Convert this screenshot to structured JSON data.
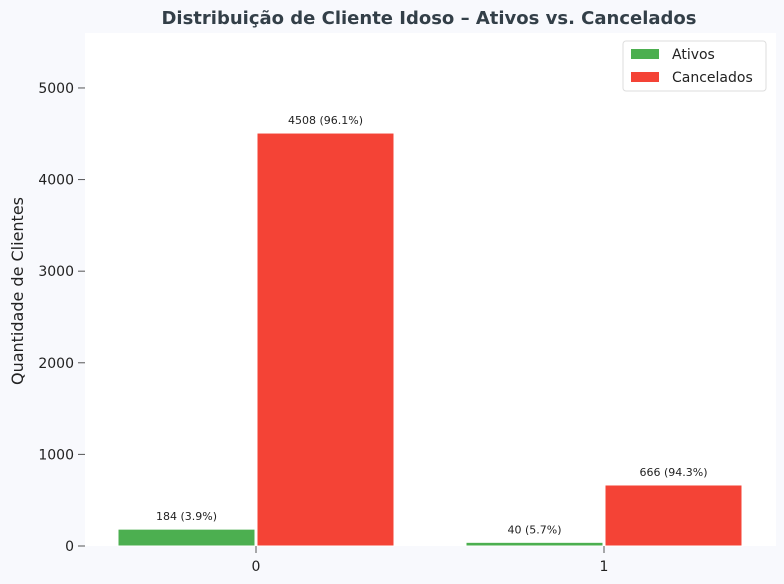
{
  "chart_data": {
    "type": "bar",
    "title": "Distribuição de Cliente Idoso – Ativos vs. Cancelados",
    "xlabel": "",
    "ylabel": "Quantidade de Clientes",
    "categories": [
      "0",
      "1"
    ],
    "series": [
      {
        "name": "Ativos",
        "color": "#4caf50",
        "values": [
          184,
          40
        ],
        "labels": [
          "184 (3.9%)",
          "40 (5.7%)"
        ]
      },
      {
        "name": "Cancelados",
        "color": "#f44336",
        "values": [
          4508,
          666
        ],
        "labels": [
          "4508 (96.1%)",
          "666 (94.3%)"
        ]
      }
    ],
    "ylim": [
      0,
      5600
    ],
    "yticks": [
      0,
      1000,
      2000,
      3000,
      4000,
      5000
    ],
    "grid": false,
    "legend": "top-right"
  }
}
